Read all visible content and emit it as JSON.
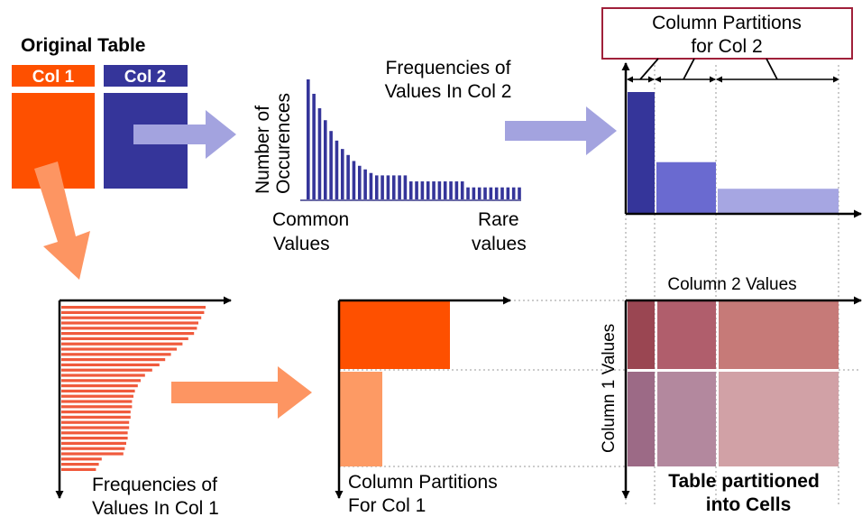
{
  "original_table": {
    "title": "Original Table",
    "col1_label": "Col 1",
    "col2_label": "Col 2"
  },
  "freq_col2": {
    "title_line1": "Frequencies of",
    "title_line2": "Values In Col 2",
    "ylabel_line1": "Number of",
    "ylabel_line2": "Occurences",
    "xlabel_left_line1": "Common",
    "xlabel_left_line2": "Values",
    "xlabel_right_line1": "Rare",
    "xlabel_right_line2": "values",
    "bar_values": [
      100,
      88,
      76,
      66,
      57,
      49,
      42,
      37,
      32,
      28,
      25,
      22,
      20,
      20,
      20,
      20,
      20,
      20,
      15,
      15,
      15,
      15,
      15,
      15,
      15,
      15,
      15,
      15,
      10,
      10,
      10,
      10,
      10,
      10,
      10,
      10,
      10,
      10
    ]
  },
  "col2_partitions": {
    "title_line1": "Column Partitions",
    "title_line2": "for Col 2",
    "bar_heights": [
      100,
      42,
      20
    ]
  },
  "freq_col1": {
    "title_line1": "Frequencies of",
    "title_line2": "Values In Col 1",
    "bar_values": [
      100,
      99,
      97,
      95,
      94,
      92,
      88,
      84,
      80,
      76,
      72,
      68,
      63,
      58,
      55,
      53,
      51,
      50,
      49,
      49,
      48,
      48,
      47,
      47,
      46,
      46,
      45,
      44,
      43,
      28,
      26,
      24
    ]
  },
  "col1_partitions": {
    "title_line1": "Column Partitions",
    "title_line2": "For Col 1"
  },
  "cells": {
    "xlabel": "Column 2 Values",
    "ylabel": "Column 1 Values",
    "caption_line1": "Table partitioned",
    "caption_line2": "into Cells"
  },
  "colors": {
    "orange": "#fe5000",
    "light_orange": "#fd9a64",
    "navy": "#35359a",
    "mid_blue": "#6a6ad0",
    "light_blue": "#a6a6e2",
    "arrow_blue": "#a3a3df",
    "arrow_orange": "#fd9562",
    "callout_border": "#a0203a",
    "bar_col1": "#f05a3c",
    "cell_r1c1": "#9a4652",
    "cell_r1c2": "#b05e6c",
    "cell_r1c3": "#c67a78",
    "cell_r2c1": "#9c6a86",
    "cell_r2c2": "#b3889e",
    "cell_r2c3": "#d1a1a6"
  }
}
